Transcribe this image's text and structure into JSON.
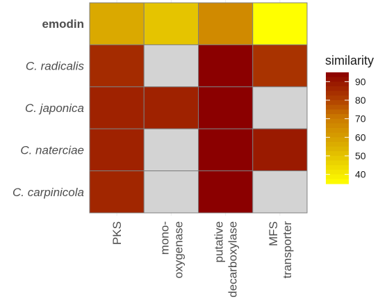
{
  "chart_data": {
    "type": "heatmap",
    "rows": [
      {
        "label": "emodin",
        "style": "bold"
      },
      {
        "label": "C. radicalis",
        "style": "italic"
      },
      {
        "label": "C. japonica",
        "style": "italic"
      },
      {
        "label": "C. naterciae",
        "style": "italic"
      },
      {
        "label": "C. carpinicola",
        "style": "italic"
      }
    ],
    "columns": [
      [
        "PKS"
      ],
      [
        "mono-",
        "oxygenase"
      ],
      [
        "putative",
        "decarboxylase"
      ],
      [
        "MFS",
        "transporter"
      ]
    ],
    "values": [
      [
        57,
        50,
        66,
        35
      ],
      [
        85,
        null,
        95,
        83
      ],
      [
        87,
        87,
        95,
        null
      ],
      [
        87,
        null,
        95,
        89
      ],
      [
        86,
        null,
        95,
        null
      ]
    ],
    "missing_color": "#d3d3d3",
    "color_scale": {
      "low": 35,
      "high": 95,
      "stops": [
        {
          "value": 35,
          "color": "#ffff00"
        },
        {
          "value": 55,
          "color": "#dcb000"
        },
        {
          "value": 70,
          "color": "#cc7c00"
        },
        {
          "value": 80,
          "color": "#b04000"
        },
        {
          "value": 95,
          "color": "#8b0000"
        }
      ]
    },
    "legend": {
      "title": "similarity",
      "ticks": [
        40,
        50,
        60,
        70,
        80,
        90
      ],
      "position": "right"
    },
    "grid": true
  }
}
